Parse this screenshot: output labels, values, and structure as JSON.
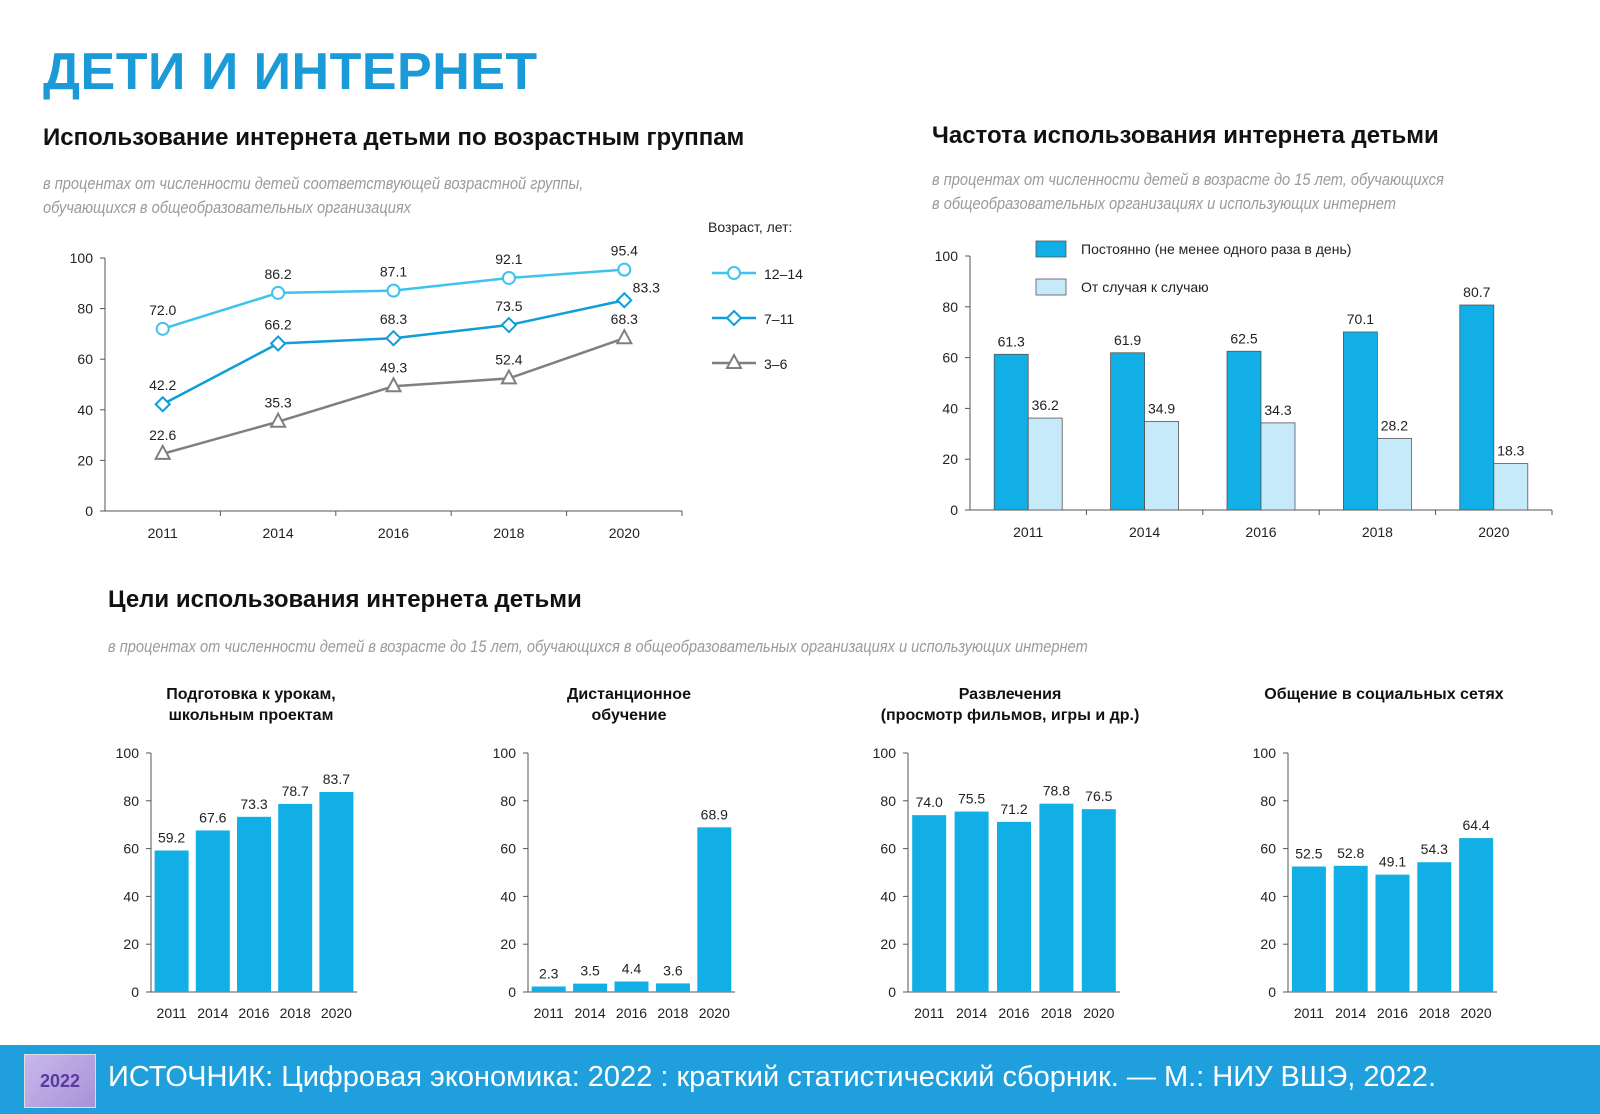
{
  "title": "ДЕТИ И ИНТЕРНЕТ",
  "section1": {
    "title": "Использование интернета детьми по возрастным группам",
    "subtitle_line1": "в процентах от численности детей соответствующей возрастной группы,",
    "subtitle_line2": "обучающихся в общеобразовательных организациях",
    "legend_title": "Возраст, лет:"
  },
  "section2": {
    "title": "Частота использования интернета детьми",
    "subtitle_line1": "в процентах от численности детей в возрасте до 15 лет, обучающихся",
    "subtitle_line2": "в общеобразовательных организациях и использующих интернет"
  },
  "section3": {
    "title": "Цели использования интернета детьми",
    "subtitle": "в процентах от численности детей в возрасте до 15 лет, обучающихся в общеобразовательных организациях и использующих интернет"
  },
  "footer": {
    "source": "ИСТОЧНИК: Цифровая экономика: 2022 : краткий статистический сборник. — М.: НИУ ВШЭ, 2022.",
    "logo_text": "2022"
  },
  "colors": {
    "accent": "#1a9ad6",
    "bar": "#12aee6",
    "bar_light": "#c6eaf9",
    "line_12_14": "#3fc3ec",
    "line_7_11": "#0e9fd9",
    "line_3_6": "#7f7f7f",
    "footer": "#1fa0dc"
  },
  "chart_data": [
    {
      "type": "line",
      "categories": [
        "2011",
        "2014",
        "2016",
        "2018",
        "2020"
      ],
      "ylim": [
        0,
        100
      ],
      "yticks": [
        0,
        20,
        40,
        60,
        80,
        100
      ],
      "legend_placement": "right",
      "series": [
        {
          "name": "12–14",
          "marker": "circle",
          "values": [
            72.0,
            86.2,
            87.1,
            92.1,
            95.4
          ]
        },
        {
          "name": "7–11",
          "marker": "diamond",
          "values": [
            42.2,
            66.2,
            68.3,
            73.5,
            83.3
          ]
        },
        {
          "name": "3–6",
          "marker": "triangle",
          "values": [
            22.6,
            35.3,
            49.3,
            52.4,
            68.3
          ]
        }
      ]
    },
    {
      "type": "bar",
      "categories": [
        "2011",
        "2014",
        "2016",
        "2018",
        "2020"
      ],
      "ylim": [
        0,
        100
      ],
      "yticks": [
        0,
        20,
        40,
        60,
        80,
        100
      ],
      "legend_placement": "top",
      "series": [
        {
          "name": "Постоянно (не менее одного раза в день)",
          "values": [
            61.3,
            61.9,
            62.5,
            70.1,
            80.7
          ]
        },
        {
          "name": "От случая к случаю",
          "values": [
            36.2,
            34.9,
            34.3,
            28.2,
            18.3
          ]
        }
      ]
    },
    {
      "type": "bar",
      "title": "Подготовка к урокам, школьным проектам",
      "title_lines": [
        "Подготовка к урокам,",
        "школьным проектам"
      ],
      "categories": [
        "2011",
        "2014",
        "2016",
        "2018",
        "2020"
      ],
      "values": [
        59.2,
        67.6,
        73.3,
        78.7,
        83.7
      ],
      "ylim": [
        0,
        100
      ],
      "yticks": [
        0,
        20,
        40,
        60,
        80,
        100
      ]
    },
    {
      "type": "bar",
      "title": "Дистанционное обучение",
      "title_lines": [
        "Дистанционное",
        "обучение"
      ],
      "categories": [
        "2011",
        "2014",
        "2016",
        "2018",
        "2020"
      ],
      "values": [
        2.3,
        3.5,
        4.4,
        3.6,
        68.9
      ],
      "ylim": [
        0,
        100
      ],
      "yticks": [
        0,
        20,
        40,
        60,
        80,
        100
      ]
    },
    {
      "type": "bar",
      "title": "Развлечения (просмотр фильмов, игры и др.)",
      "title_lines": [
        "Развлечения",
        "(просмотр фильмов, игры и др.)"
      ],
      "categories": [
        "2011",
        "2014",
        "2016",
        "2018",
        "2020"
      ],
      "values": [
        74.0,
        75.5,
        71.2,
        78.8,
        76.5
      ],
      "ylim": [
        0,
        100
      ],
      "yticks": [
        0,
        20,
        40,
        60,
        80,
        100
      ]
    },
    {
      "type": "bar",
      "title": "Общение в социальных сетях",
      "title_lines": [
        "Общение в социальных сетях"
      ],
      "categories": [
        "2011",
        "2014",
        "2016",
        "2018",
        "2020"
      ],
      "values": [
        52.5,
        52.8,
        49.1,
        54.3,
        64.4
      ],
      "ylim": [
        0,
        100
      ],
      "yticks": [
        0,
        20,
        40,
        60,
        80,
        100
      ]
    }
  ]
}
